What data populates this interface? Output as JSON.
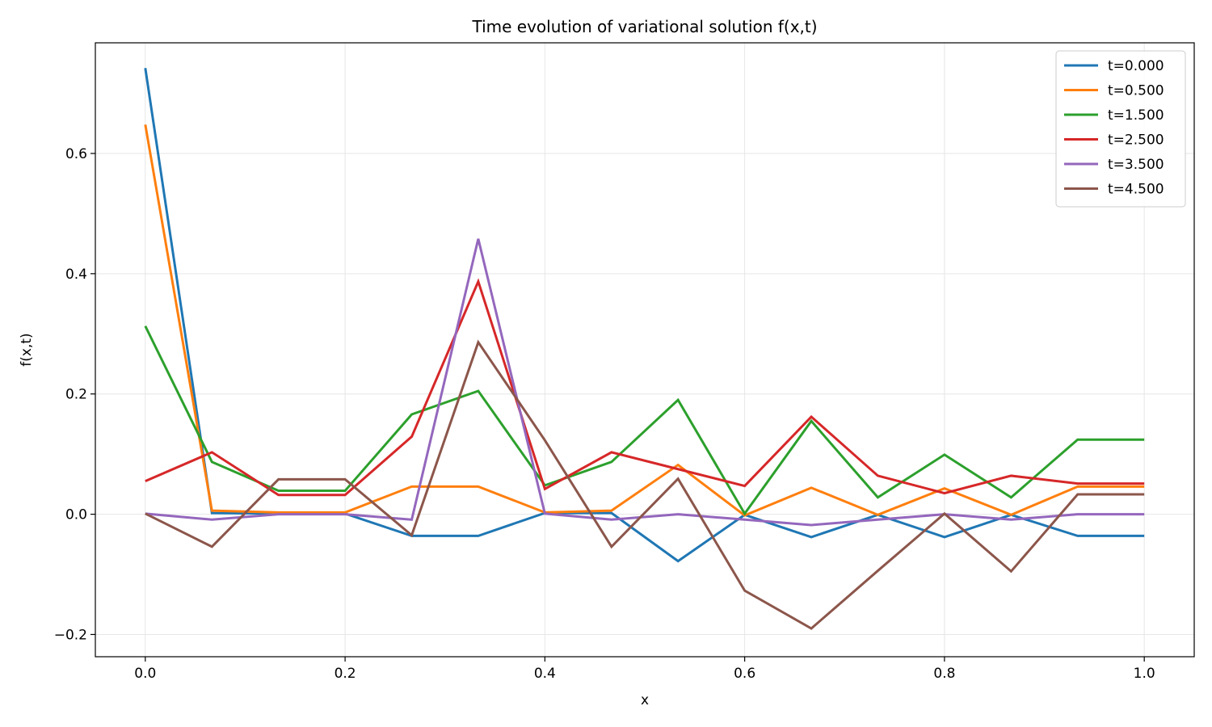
{
  "chart_data": {
    "type": "line",
    "title": "Time evolution of variational solution f(x,t)",
    "xlabel": "x",
    "ylabel": "f(x,t)",
    "xlim": [
      -0.05,
      1.05
    ],
    "ylim": [
      -0.237,
      0.784
    ],
    "xticks": [
      0.0,
      0.2,
      0.4,
      0.6,
      0.8,
      1.0
    ],
    "xtick_labels": [
      "0.0",
      "0.2",
      "0.4",
      "0.6",
      "0.8",
      "1.0"
    ],
    "yticks": [
      -0.2,
      0.0,
      0.2,
      0.4,
      0.6
    ],
    "ytick_labels": [
      "−0.2",
      "0.0",
      "0.2",
      "0.4",
      "0.6"
    ],
    "grid": true,
    "legend_position": "top-right",
    "x": [
      0,
      0.0667,
      0.1333,
      0.2,
      0.2667,
      0.3333,
      0.4,
      0.4667,
      0.5333,
      0.6,
      0.6667,
      0.7333,
      0.8,
      0.8667,
      0.9333,
      1.0
    ],
    "series": [
      {
        "name": "t=0.000",
        "color": "#1f77b4",
        "values": [
          0.742,
          0.002,
          0.001,
          0.001,
          -0.036,
          -0.036,
          0.002,
          0.002,
          -0.078,
          -0.001,
          -0.038,
          -0.001,
          -0.038,
          -0.001,
          -0.036,
          -0.036
        ]
      },
      {
        "name": "t=0.500",
        "color": "#ff7f0e",
        "values": [
          0.648,
          0.006,
          0.003,
          0.003,
          0.046,
          0.046,
          0.003,
          0.006,
          0.082,
          -0.002,
          0.044,
          -0.001,
          0.043,
          -0.001,
          0.046,
          0.046
        ]
      },
      {
        "name": "t=1.500",
        "color": "#2ca02c",
        "values": [
          0.313,
          0.087,
          0.039,
          0.039,
          0.166,
          0.205,
          0.048,
          0.087,
          0.19,
          0.001,
          0.155,
          0.028,
          0.099,
          0.028,
          0.124,
          0.124
        ]
      },
      {
        "name": "t=2.500",
        "color": "#d62728",
        "values": [
          0.055,
          0.103,
          0.032,
          0.032,
          0.129,
          0.387,
          0.042,
          0.103,
          0.075,
          0.047,
          0.162,
          0.064,
          0.035,
          0.064,
          0.051,
          0.051
        ]
      },
      {
        "name": "t=3.500",
        "color": "#9467bd",
        "values": [
          0.001,
          -0.009,
          0.0,
          0.0,
          -0.009,
          0.458,
          0.001,
          -0.009,
          0.0,
          -0.009,
          -0.018,
          -0.009,
          0.0,
          -0.009,
          0.0,
          0.0
        ]
      },
      {
        "name": "t=4.500",
        "color": "#8c564b",
        "values": [
          0.001,
          -0.054,
          0.058,
          0.058,
          -0.035,
          0.286,
          0.123,
          -0.054,
          0.059,
          -0.127,
          -0.19,
          -0.094,
          0.001,
          -0.095,
          0.033,
          0.033
        ]
      }
    ]
  }
}
